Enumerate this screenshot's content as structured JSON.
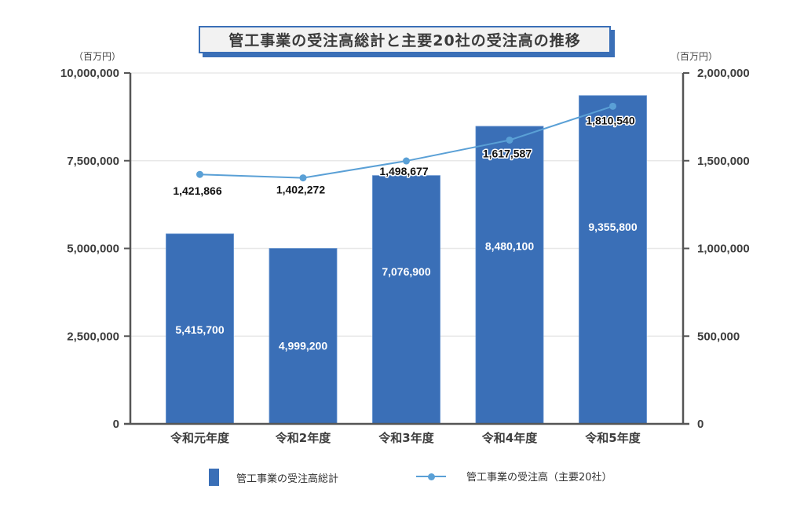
{
  "title": "管工事業の受注高総計と主要20社の受注高の推移",
  "units": {
    "left": "（百万円）",
    "right": "（百万円）"
  },
  "colors": {
    "bar": "#3a6fb7",
    "line": "#5aa0d6",
    "grid": "#e8e8e8",
    "axis": "#555555"
  },
  "legend": [
    {
      "label": "管工事業の受注高総計",
      "type": "bar"
    },
    {
      "label": "管工事業の受注高（主要20社）",
      "type": "line"
    }
  ],
  "chart_data": {
    "type": "bar+line",
    "title": "管工事業の受注高総計と主要20社の受注高の推移",
    "categories": [
      "令和元年度",
      "令和2年度",
      "令和3年度",
      "令和4年度",
      "令和5年度"
    ],
    "series": [
      {
        "name": "管工事業の受注高総計",
        "type": "bar",
        "axis": "left",
        "values": [
          5415700,
          4999200,
          7076900,
          8480100,
          9355800
        ],
        "labels": [
          "5,415,700",
          "4,999,200",
          "7,076,900",
          "8,480,100",
          "9,355,800"
        ]
      },
      {
        "name": "管工事業の受注高（主要20社）",
        "type": "line",
        "axis": "right",
        "values": [
          1421866,
          1402272,
          1498677,
          1617587,
          1810540
        ],
        "labels": [
          "1,421,866",
          "1,402,272",
          "1,498,677",
          "1,617,587",
          "1,810,540"
        ]
      }
    ],
    "ylabel_left": "（百万円）",
    "ylabel_right": "（百万円）",
    "ylim_left": [
      0,
      10000000
    ],
    "ylim_right": [
      0,
      2000000
    ],
    "yticks_left": [
      "0",
      "2,500,000",
      "5,000,000",
      "7,500,000",
      "10,000,000"
    ],
    "yticks_right": [
      "0",
      "500,000",
      "1,000,000",
      "1,500,000",
      "2,000,000"
    ],
    "grid": true,
    "legend_position": "bottom"
  }
}
